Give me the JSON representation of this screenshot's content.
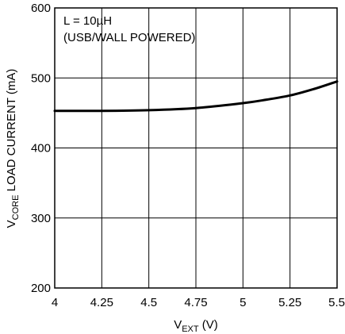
{
  "chart_data": {
    "type": "line",
    "title": "",
    "xlabel": {
      "main": "V",
      "sub": "EXT",
      "suffix": " (V)"
    },
    "ylabel": {
      "main": "V",
      "sub": "CORE",
      "suffix": " LOAD CURRENT (mA)"
    },
    "xlim": [
      4,
      5.5
    ],
    "ylim": [
      200,
      600
    ],
    "xticks": [
      4,
      4.25,
      4.5,
      4.75,
      5,
      5.25,
      5.5
    ],
    "xtick_labels": [
      "4",
      "4.25",
      "4.5",
      "4.75",
      "5",
      "5.25",
      "5.5"
    ],
    "yticks": [
      200,
      300,
      400,
      500,
      600
    ],
    "ytick_labels": [
      "200",
      "300",
      "400",
      "500",
      "600"
    ],
    "grid": true,
    "legend": "none",
    "annotations": [
      "L = 10µH",
      "(USB/WALL POWERED)"
    ],
    "series": [
      {
        "color": "#000000",
        "x": [
          4.0,
          4.25,
          4.5,
          4.75,
          5.0,
          5.125,
          5.25,
          5.375,
          5.5
        ],
        "y": [
          453,
          453,
          454,
          457,
          464,
          469,
          475,
          484,
          495
        ]
      }
    ]
  }
}
